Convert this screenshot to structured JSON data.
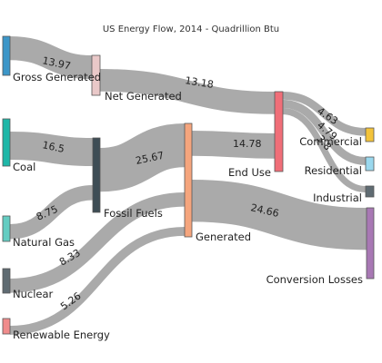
{
  "title": "US Energy Flow, 2014 - Quadrillion Btu",
  "colors": {
    "link": "#9b9b9b",
    "gross_generated": "#3c96c8",
    "net_generated": "#e9c8c8",
    "coal": "#1fb7a8",
    "natural_gas": "#64cdc2",
    "nuclear": "#5f6b72",
    "renewable_energy": "#f08c8c",
    "fossil_fuels": "#3e4d55",
    "generated": "#f5a57d",
    "end_use": "#f06e78",
    "commercial": "#f3c33a",
    "residential": "#9ad8ee",
    "industrial": "#5f6b72",
    "conversion_losses": "#a878b4"
  },
  "nodes": [
    {
      "id": "gross_generated",
      "label": "Gross Generated"
    },
    {
      "id": "net_generated",
      "label": "Net Generated"
    },
    {
      "id": "coal",
      "label": "Coal"
    },
    {
      "id": "natural_gas",
      "label": "Natural Gas"
    },
    {
      "id": "nuclear",
      "label": "Nuclear"
    },
    {
      "id": "renewable_energy",
      "label": "Renewable Energy"
    },
    {
      "id": "fossil_fuels",
      "label": "Fossil Fuels"
    },
    {
      "id": "generated",
      "label": "Generated"
    },
    {
      "id": "end_use",
      "label": "End Use"
    },
    {
      "id": "commercial",
      "label": "Commercial"
    },
    {
      "id": "residential",
      "label": "Residential"
    },
    {
      "id": "industrial",
      "label": "Industrial"
    },
    {
      "id": "conversion_losses",
      "label": "Conversion Losses"
    }
  ],
  "links": [
    {
      "source": "gross_generated",
      "target": "net_generated",
      "value": 13.97,
      "label": "13.97"
    },
    {
      "source": "net_generated",
      "target": "end_use",
      "value": 13.18,
      "label": "13.18"
    },
    {
      "source": "coal",
      "target": "fossil_fuels",
      "value": 16.5,
      "label": "16.5"
    },
    {
      "source": "natural_gas",
      "target": "fossil_fuels",
      "value": 8.75,
      "label": "8.75"
    },
    {
      "source": "fossil_fuels",
      "target": "generated",
      "value": 25.67,
      "label": "25.67"
    },
    {
      "source": "nuclear",
      "target": "generated",
      "value": 8.33,
      "label": "8.33"
    },
    {
      "source": "renewable_energy",
      "target": "generated",
      "value": 5.26,
      "label": "5.26"
    },
    {
      "source": "generated",
      "target": "end_use",
      "value": 14.78,
      "label": "14.78"
    },
    {
      "source": "generated",
      "target": "conversion_losses",
      "value": 24.66,
      "label": "24.66"
    },
    {
      "source": "end_use",
      "target": "commercial",
      "value": 4.63,
      "label": "4.63"
    },
    {
      "source": "end_use",
      "target": "residential",
      "value": 4.79,
      "label": "4.79"
    },
    {
      "source": "end_use",
      "target": "industrial",
      "value": 3.8,
      "label": "3.8"
    }
  ]
}
